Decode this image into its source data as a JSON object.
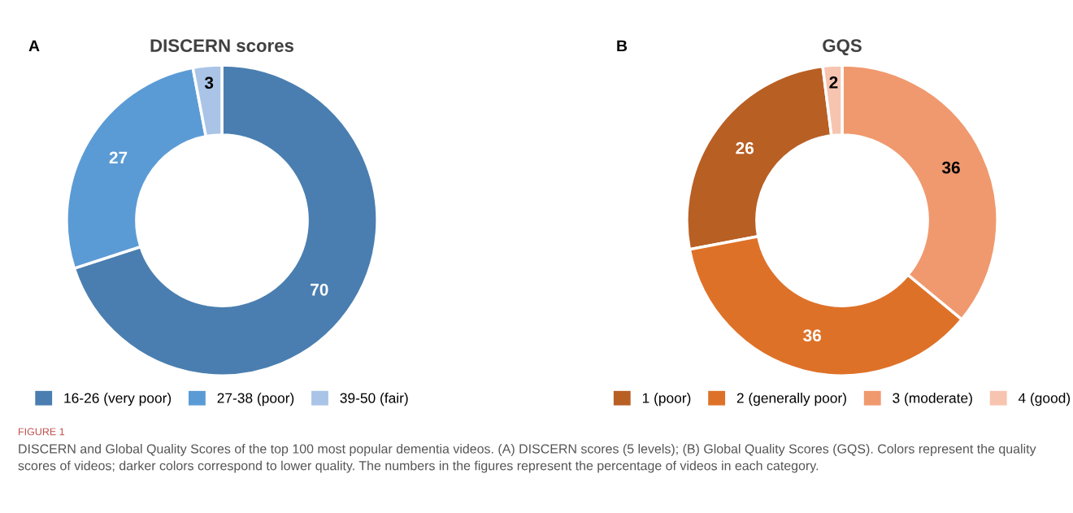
{
  "chart_data": [
    {
      "type": "donut",
      "title": "DISCERN scores",
      "categories": [
        "16-26 (very poor)",
        "27-38 (poor)",
        "39-50 (fair)"
      ],
      "values": [
        70,
        27,
        3
      ],
      "colors": [
        "#4a7eb0",
        "#5b9bd5",
        "#a9c4e6"
      ],
      "data_labels": true,
      "legend": "bottom",
      "annotations": [
        "A",
        "FIGURE 1",
        "DISCERN and Global Quality Scores of the top 100 most popular dementia videos. (A) DISCERN scores (5 levels); (B) Global Quality Scores (GQS). Colors represent the quality scores of videos; darker colors correspond to lower quality. The numbers in the figures represent the percentage of videos in each category."
      ]
    },
    {
      "type": "donut",
      "title": "GQS",
      "categories": [
        "1 (poor)",
        "2 (generally poor)",
        "3 (moderate)",
        "4 (good)"
      ],
      "values": [
        26,
        36,
        36,
        2
      ],
      "colors": [
        "#b85f24",
        "#de7128",
        "#f0996e",
        "#f7c4b0"
      ],
      "data_labels": true,
      "legend": "bottom",
      "annotations": [
        "B"
      ]
    }
  ]
}
